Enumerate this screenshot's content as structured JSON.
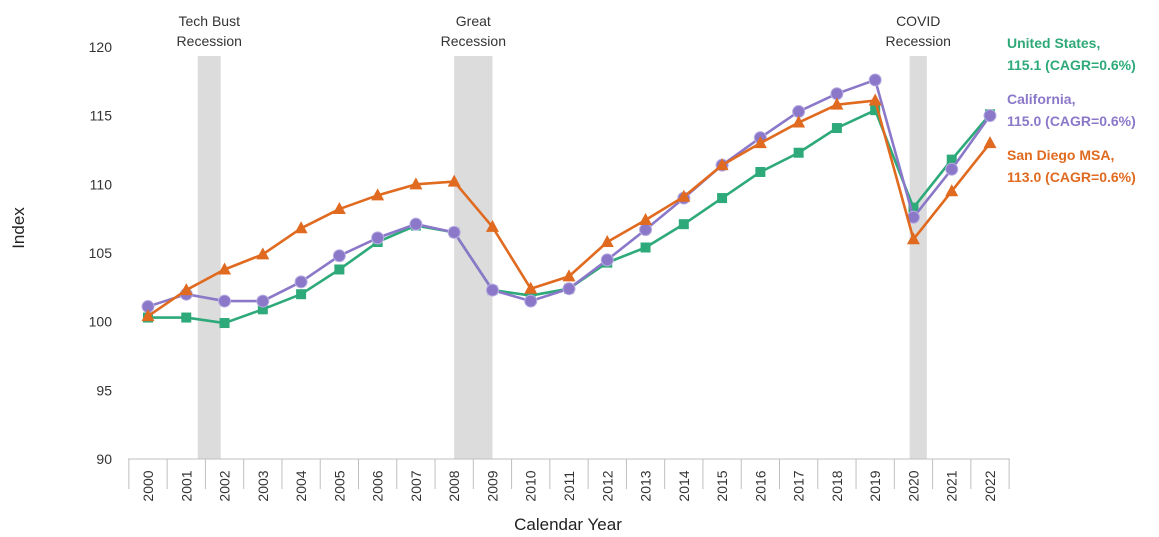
{
  "chart_data": {
    "type": "line",
    "xlabel": "Calendar Year",
    "ylabel": "Index",
    "ylim": [
      90,
      120
    ],
    "yticks": [
      90,
      95,
      100,
      105,
      110,
      115,
      120
    ],
    "x": [
      "2000",
      "2001",
      "2002",
      "2003",
      "2004",
      "2005",
      "2006",
      "2007",
      "2008",
      "2009",
      "2010",
      "2011",
      "2012",
      "2013",
      "2014",
      "2015",
      "2016",
      "2017",
      "2018",
      "2019",
      "2020",
      "2021",
      "2022"
    ],
    "grid": false,
    "legend_placement": "right",
    "recessions": [
      {
        "label_lines": [
          "Tech Bust",
          "Recession"
        ],
        "start": 2001.3,
        "end": 2001.9
      },
      {
        "label_lines": [
          "Great",
          "Recession"
        ],
        "start": 2008.0,
        "end": 2009.0
      },
      {
        "label_lines": [
          "COVID",
          "Recession"
        ],
        "start": 2019.9,
        "end": 2020.35
      }
    ],
    "series": [
      {
        "name": "United States",
        "legend_lines": [
          "United States,",
          "115.1 (CAGR=0.6%)"
        ],
        "color": "#2eaa7a",
        "marker": "square",
        "values": [
          100.3,
          100.3,
          99.9,
          100.9,
          102.0,
          103.8,
          105.8,
          107.0,
          106.5,
          102.3,
          101.9,
          102.4,
          104.3,
          105.4,
          107.1,
          109.0,
          110.9,
          112.3,
          114.1,
          115.4,
          108.3,
          111.8,
          115.1
        ]
      },
      {
        "name": "California",
        "legend_lines": [
          "California,",
          "115.0 (CAGR=0.6%)"
        ],
        "color": "#8b78c9",
        "marker": "circle",
        "values": [
          101.1,
          102.0,
          101.5,
          101.5,
          102.9,
          104.8,
          106.1,
          107.1,
          106.5,
          102.3,
          101.5,
          102.4,
          104.5,
          106.7,
          109.0,
          111.4,
          113.4,
          115.3,
          116.6,
          117.6,
          107.6,
          111.1,
          115.0
        ]
      },
      {
        "name": "San Diego MSA",
        "legend_lines": [
          "San Diego MSA,",
          "113.0 (CAGR=0.6%)"
        ],
        "color": "#e06a1f",
        "marker": "triangle",
        "values": [
          100.4,
          102.3,
          103.8,
          104.9,
          106.8,
          108.2,
          109.2,
          110.0,
          110.2,
          106.9,
          102.4,
          103.3,
          105.8,
          107.4,
          109.1,
          111.4,
          113.0,
          114.5,
          115.8,
          116.1,
          106.0,
          109.5,
          113.0
        ]
      }
    ]
  }
}
